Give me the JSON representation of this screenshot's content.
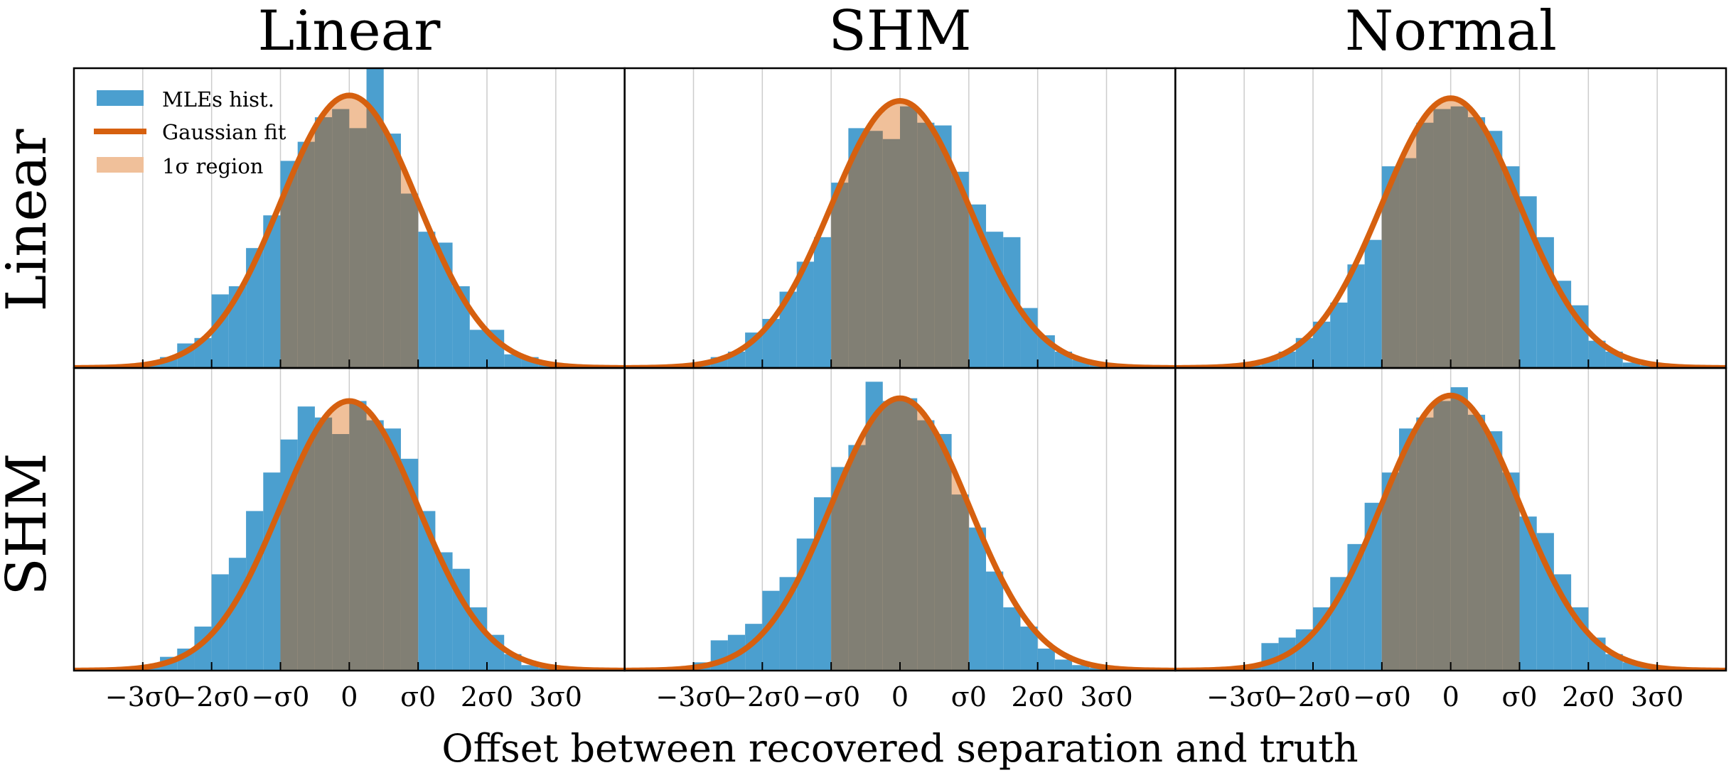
{
  "figure": {
    "column_titles": [
      "Linear",
      "SHM",
      "Normal"
    ],
    "row_titles": [
      "Linear",
      "SHM"
    ],
    "xlabel": "Offset between recovered separation and truth"
  },
  "legend": {
    "hist": "MLEs hist.",
    "fit": "Gaussian fit",
    "region": "1σ region"
  },
  "colors": {
    "hist": "#4b9fcf",
    "fit": "#d6600f",
    "region": "#f0c09a",
    "overlap": "#817f74",
    "grid": "#cccccc"
  },
  "chart_data": {
    "type": "bar",
    "description_units": "x in units of sigma_0 (offset / sigma_0); y in relative counts (unlabeled)",
    "xlim": [
      -4,
      4
    ],
    "ylim": [
      0,
      1.1
    ],
    "x_ticks": [
      -3,
      -2,
      -1,
      0,
      1,
      2,
      3
    ],
    "x_tick_labels": [
      "−3σ0",
      "−2σ0",
      "−σ0",
      "0",
      "σ0",
      "2σ0",
      "3σ0"
    ],
    "grid": "vertical",
    "legend_placement": "top-left (first panel)",
    "bin_edges": [
      -3,
      -2.75,
      -2.5,
      -2.25,
      -2,
      -1.75,
      -1.5,
      -1.25,
      -1,
      -0.75,
      -0.5,
      -0.25,
      0,
      0.25,
      0.5,
      0.75,
      1,
      1.25,
      1.5,
      1.75,
      2,
      2.25,
      2.5,
      2.75,
      3
    ],
    "panels": [
      {
        "row": "Linear",
        "col": "Linear",
        "fit": {
          "mu": 0,
          "sigma": 1,
          "amp": 1.0
        },
        "sigma_region": [
          -1,
          1
        ],
        "counts": [
          0.02,
          0.04,
          0.09,
          0.11,
          0.27,
          0.3,
          0.44,
          0.56,
          0.76,
          0.83,
          0.92,
          0.95,
          0.88,
          1.1,
          0.86,
          0.64,
          0.5,
          0.46,
          0.3,
          0.14,
          0.14,
          0.05,
          0.04,
          0.02
        ]
      },
      {
        "row": "Linear",
        "col": "SHM",
        "fit": {
          "mu": 0,
          "sigma": 1,
          "amp": 0.98
        },
        "sigma_region": [
          -1,
          1
        ],
        "counts": [
          0.02,
          0.04,
          0.06,
          0.13,
          0.18,
          0.28,
          0.39,
          0.48,
          0.68,
          0.88,
          0.87,
          0.84,
          0.96,
          0.9,
          0.89,
          0.72,
          0.6,
          0.5,
          0.48,
          0.22,
          0.12,
          0.06,
          0.03,
          0.02
        ]
      },
      {
        "row": "Linear",
        "col": "Normal",
        "fit": {
          "mu": 0,
          "sigma": 1,
          "amp": 0.99
        },
        "sigma_region": [
          -1,
          1
        ],
        "counts": [
          0.01,
          0.03,
          0.06,
          0.11,
          0.17,
          0.24,
          0.38,
          0.47,
          0.74,
          0.77,
          0.9,
          0.95,
          0.96,
          0.92,
          0.87,
          0.74,
          0.63,
          0.48,
          0.32,
          0.23,
          0.1,
          0.06,
          0.02,
          0.01
        ]
      },
      {
        "row": "SHM",
        "col": "Linear",
        "fit": {
          "mu": 0,
          "sigma": 1,
          "amp": 0.98
        },
        "sigma_region": [
          -1,
          1
        ],
        "counts": [
          0.02,
          0.05,
          0.08,
          0.16,
          0.35,
          0.41,
          0.58,
          0.72,
          0.84,
          0.96,
          0.92,
          0.86,
          0.98,
          0.91,
          0.88,
          0.77,
          0.58,
          0.43,
          0.37,
          0.23,
          0.13,
          0.06,
          0.02,
          0.01
        ]
      },
      {
        "row": "SHM",
        "col": "SHM",
        "fit": {
          "mu": 0,
          "sigma": 1,
          "amp": 0.99
        },
        "sigma_region": [
          -1,
          1
        ],
        "counts": [
          0.03,
          0.11,
          0.13,
          0.17,
          0.29,
          0.34,
          0.48,
          0.63,
          0.74,
          0.82,
          1.05,
          0.98,
          0.99,
          0.91,
          0.86,
          0.64,
          0.52,
          0.36,
          0.23,
          0.16,
          0.08,
          0.04,
          0.02,
          0.01
        ]
      },
      {
        "row": "SHM",
        "col": "Normal",
        "fit": {
          "mu": 0,
          "sigma": 1,
          "amp": 1.0
        },
        "sigma_region": [
          -1,
          1
        ],
        "counts": [
          0.02,
          0.1,
          0.12,
          0.15,
          0.23,
          0.34,
          0.46,
          0.61,
          0.72,
          0.88,
          0.92,
          0.98,
          1.03,
          0.93,
          0.87,
          0.72,
          0.56,
          0.5,
          0.35,
          0.23,
          0.12,
          0.06,
          0.03,
          0.02
        ]
      }
    ]
  }
}
